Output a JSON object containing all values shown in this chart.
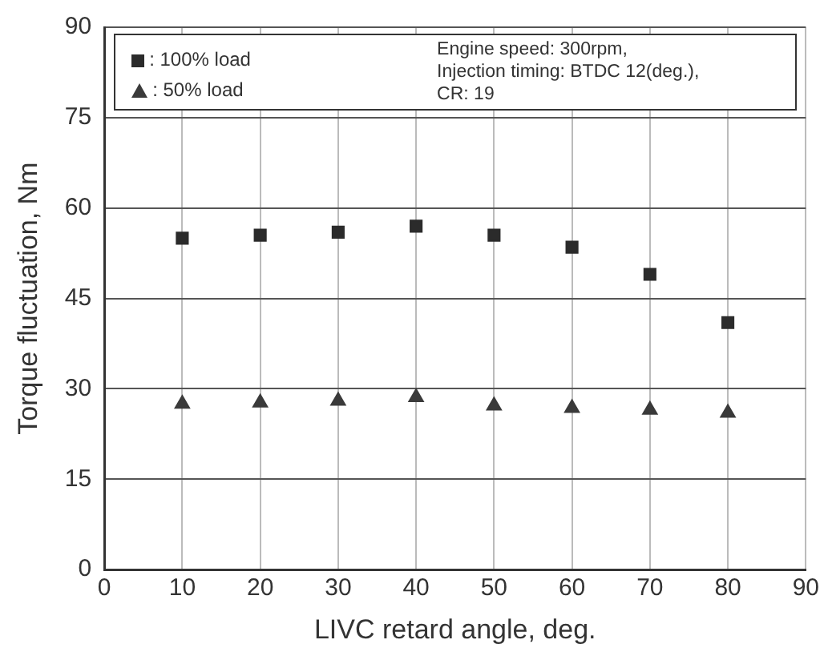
{
  "chart_data": {
    "type": "scatter",
    "xlabel": "LIVC retard angle, deg.",
    "ylabel": "Torque fluctuation, Nm",
    "x": [
      10,
      20,
      30,
      40,
      50,
      60,
      70,
      80
    ],
    "series": [
      {
        "name": ": 100% load",
        "color": "#2b2b2b",
        "marker": "square",
        "values": [
          55,
          55.5,
          56,
          57,
          55.5,
          53.5,
          49,
          41
        ]
      },
      {
        "name": ": 50% load",
        "color": "#3a3a3a",
        "marker": "triangle",
        "values": [
          27.5,
          27.7,
          28,
          28.6,
          27.2,
          26.8,
          26.5,
          26
        ]
      }
    ],
    "xlim": [
      0,
      90
    ],
    "xticks": [
      0,
      10,
      20,
      30,
      40,
      50,
      60,
      70,
      80,
      90
    ],
    "ylim": [
      0,
      90
    ],
    "yticks": [
      0,
      15,
      30,
      45,
      60,
      75,
      90
    ],
    "grid": true,
    "legend": "top left",
    "annotations": [
      "Engine speed: 300rpm,\nInjection timing: BTDC 12(deg.),\nCR: 19"
    ]
  }
}
